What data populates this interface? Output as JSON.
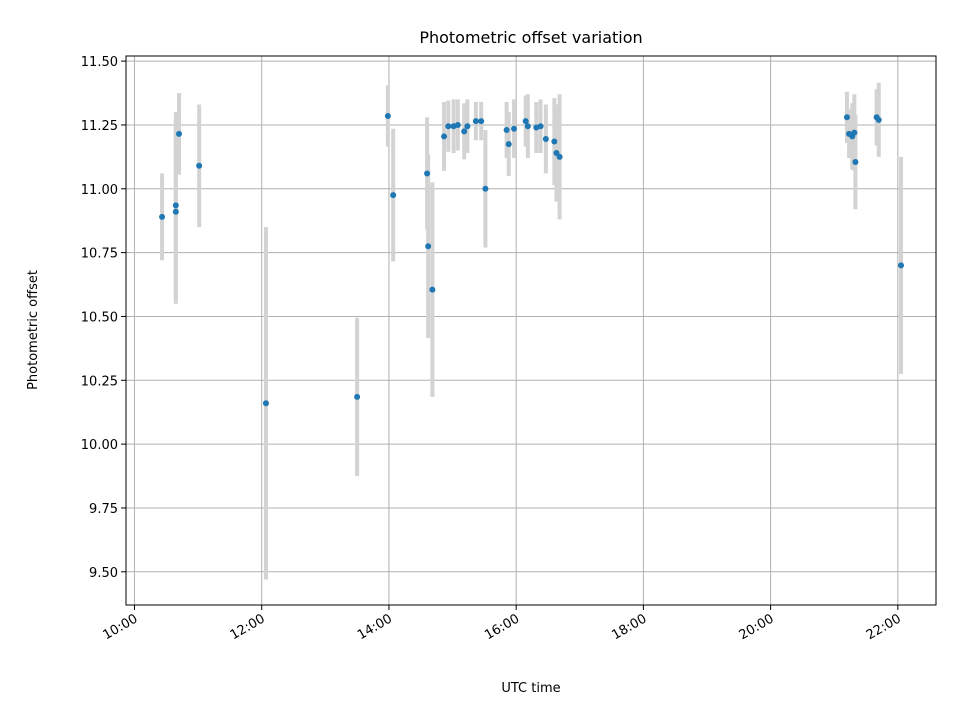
{
  "chart_data": {
    "type": "scatter",
    "title": "Photometric offset variation",
    "xlabel": "UTC time",
    "ylabel": "Photometric offset",
    "x_unit": "UTC time (HH:MM)",
    "xlim": [
      "09:52",
      "22:36"
    ],
    "ylim": [
      9.37,
      11.52
    ],
    "xticks": [
      "10:00",
      "12:00",
      "14:00",
      "16:00",
      "18:00",
      "20:00",
      "22:00"
    ],
    "yticks": [
      9.5,
      9.75,
      10.0,
      10.25,
      10.5,
      10.75,
      11.0,
      11.25,
      11.5
    ],
    "grid": true,
    "legend": "none",
    "point_color": "#1f77b4",
    "errorbar_color": "#d3d3d3",
    "series": [
      {
        "points": [
          {
            "x": "10:26",
            "y": 10.89,
            "err": 0.17
          },
          {
            "x": "10:39",
            "y": 10.91,
            "err": 0.36
          },
          {
            "x": "10:39",
            "y": 10.935,
            "err": 0.365
          },
          {
            "x": "10:42",
            "y": 11.215,
            "err": 0.16
          },
          {
            "x": "11:01",
            "y": 11.09,
            "err": 0.24
          },
          {
            "x": "12:04",
            "y": 10.16,
            "err": 0.69
          },
          {
            "x": "13:30",
            "y": 10.185,
            "err": 0.31
          },
          {
            "x": "13:59",
            "y": 11.285,
            "err": 0.12
          },
          {
            "x": "14:04",
            "y": 10.975,
            "err": 0.26
          },
          {
            "x": "14:36",
            "y": 11.06,
            "err": 0.22
          },
          {
            "x": "14:37",
            "y": 10.775,
            "err": 0.36
          },
          {
            "x": "14:41",
            "y": 10.605,
            "err": 0.42
          },
          {
            "x": "14:52",
            "y": 11.205,
            "err": 0.135
          },
          {
            "x": "14:56",
            "y": 11.245,
            "err": 0.1
          },
          {
            "x": "15:01",
            "y": 11.245,
            "err": 0.105
          },
          {
            "x": "15:05",
            "y": 11.25,
            "err": 0.1
          },
          {
            "x": "15:11",
            "y": 11.225,
            "err": 0.11
          },
          {
            "x": "15:14",
            "y": 11.245,
            "err": 0.105
          },
          {
            "x": "15:22",
            "y": 11.265,
            "err": 0.075
          },
          {
            "x": "15:27",
            "y": 11.265,
            "err": 0.075
          },
          {
            "x": "15:31",
            "y": 11.0,
            "err": 0.23
          },
          {
            "x": "15:51",
            "y": 11.23,
            "err": 0.11
          },
          {
            "x": "15:53",
            "y": 11.175,
            "err": 0.125
          },
          {
            "x": "15:58",
            "y": 11.235,
            "err": 0.115
          },
          {
            "x": "16:09",
            "y": 11.265,
            "err": 0.1
          },
          {
            "x": "16:11",
            "y": 11.245,
            "err": 0.125
          },
          {
            "x": "16:19",
            "y": 11.24,
            "err": 0.1
          },
          {
            "x": "16:23",
            "y": 11.245,
            "err": 0.105
          },
          {
            "x": "16:28",
            "y": 11.195,
            "err": 0.135
          },
          {
            "x": "16:36",
            "y": 11.185,
            "err": 0.17
          },
          {
            "x": "16:38",
            "y": 11.14,
            "err": 0.19
          },
          {
            "x": "16:41",
            "y": 11.125,
            "err": 0.245
          },
          {
            "x": "21:12",
            "y": 11.28,
            "err": 0.1
          },
          {
            "x": "21:14",
            "y": 11.215,
            "err": 0.095
          },
          {
            "x": "21:17",
            "y": 11.205,
            "err": 0.13
          },
          {
            "x": "21:19",
            "y": 11.22,
            "err": 0.15
          },
          {
            "x": "21:20",
            "y": 11.105,
            "err": 0.185
          },
          {
            "x": "21:40",
            "y": 11.28,
            "err": 0.11
          },
          {
            "x": "21:42",
            "y": 11.27,
            "err": 0.145
          },
          {
            "x": "22:03",
            "y": 10.7,
            "err": 0.425
          }
        ]
      }
    ]
  }
}
